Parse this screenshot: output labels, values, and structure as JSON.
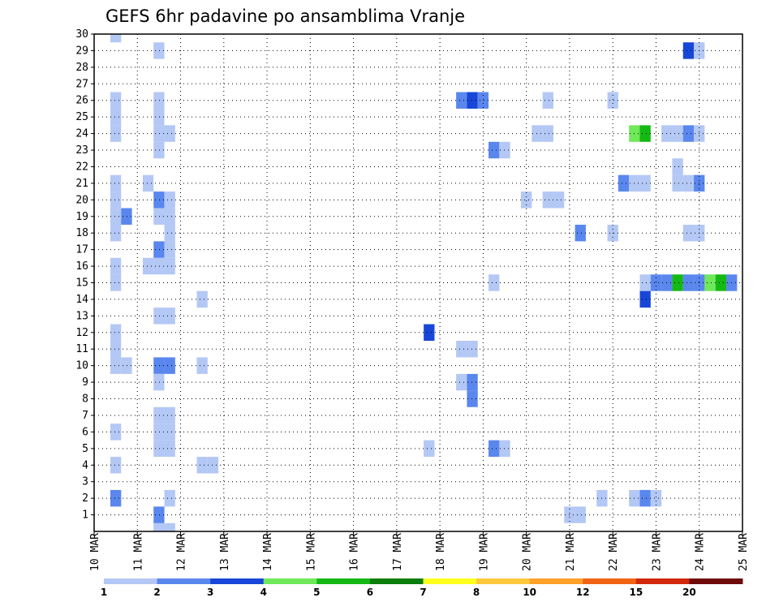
{
  "chart_data": {
    "type": "heatmap",
    "title": "GEFS 6hr padavine po ansamblima Vranje",
    "xlabel": "",
    "ylabel": "",
    "x_ticks": [
      "10 MAR",
      "11 MAR",
      "12 MAR",
      "13 MAR",
      "14 MAR",
      "15 MAR",
      "16 MAR",
      "17 MAR",
      "18 MAR",
      "19 MAR",
      "20 MAR",
      "21 MAR",
      "22 MAR",
      "23 MAR",
      "24 MAR",
      "25 MAR"
    ],
    "y_ticks": [
      1,
      2,
      3,
      4,
      5,
      6,
      7,
      8,
      9,
      10,
      11,
      12,
      13,
      14,
      15,
      16,
      17,
      18,
      19,
      20,
      21,
      22,
      23,
      24,
      25,
      26,
      27,
      28,
      29,
      30
    ],
    "y_range": [
      0,
      30
    ],
    "time_steps_per_day": 4,
    "grid": "dotted",
    "legend": {
      "placement": "bottom",
      "bins": [
        {
          "from": 1,
          "to": 2,
          "color": "#b4c8f5"
        },
        {
          "from": 2,
          "to": 3,
          "color": "#5a87ee"
        },
        {
          "from": 3,
          "to": 4,
          "color": "#1846d8"
        },
        {
          "from": 4,
          "to": 5,
          "color": "#6fe85a"
        },
        {
          "from": 5,
          "to": 6,
          "color": "#14b914"
        },
        {
          "from": 6,
          "to": 7,
          "color": "#0a7d0a"
        },
        {
          "from": 7,
          "to": 8,
          "color": "#ffff1e"
        },
        {
          "from": 8,
          "to": 10,
          "color": "#ffc83c"
        },
        {
          "from": 10,
          "to": 12,
          "color": "#ffa028"
        },
        {
          "from": 12,
          "to": 15,
          "color": "#f06414"
        },
        {
          "from": 15,
          "to": 20,
          "color": "#d2280a"
        },
        {
          "from": 20,
          "to": null,
          "color": "#6e0a0a"
        }
      ],
      "labels": [
        "1",
        "2",
        "3",
        "4",
        "5",
        "6",
        "7",
        "8",
        "10",
        "12",
        "15",
        "20"
      ]
    },
    "cells": [
      [
        0.5,
        30,
        1
      ],
      [
        0.5,
        26,
        1
      ],
      [
        0.5,
        25,
        1
      ],
      [
        0.5,
        24,
        1
      ],
      [
        0.5,
        21,
        1
      ],
      [
        0.5,
        20,
        1
      ],
      [
        0.5,
        19,
        1
      ],
      [
        0.5,
        18,
        1
      ],
      [
        0.5,
        16,
        1
      ],
      [
        0.5,
        15,
        1
      ],
      [
        0.5,
        12,
        1
      ],
      [
        0.5,
        11,
        1
      ],
      [
        0.5,
        10,
        1
      ],
      [
        0.5,
        6,
        1
      ],
      [
        0.5,
        4,
        1
      ],
      [
        0.5,
        2,
        2
      ],
      [
        0.75,
        19,
        2
      ],
      [
        0.75,
        10,
        1
      ],
      [
        1.25,
        21,
        1
      ],
      [
        1.25,
        16,
        1
      ],
      [
        1.5,
        29,
        1
      ],
      [
        1.5,
        26,
        1
      ],
      [
        1.5,
        25,
        1
      ],
      [
        1.5,
        24,
        1
      ],
      [
        1.5,
        23,
        1
      ],
      [
        1.5,
        20,
        2
      ],
      [
        1.5,
        19,
        1
      ],
      [
        1.5,
        17,
        2
      ],
      [
        1.5,
        16,
        1
      ],
      [
        1.5,
        13,
        1
      ],
      [
        1.5,
        10,
        2
      ],
      [
        1.5,
        9,
        1
      ],
      [
        1.5,
        7,
        1
      ],
      [
        1.5,
        6,
        1
      ],
      [
        1.5,
        5,
        1
      ],
      [
        1.5,
        0,
        1
      ],
      [
        1.5,
        1,
        2
      ],
      [
        1.75,
        24,
        1
      ],
      [
        1.75,
        20,
        1
      ],
      [
        1.75,
        19,
        1
      ],
      [
        1.75,
        18,
        1
      ],
      [
        1.75,
        17,
        1
      ],
      [
        1.75,
        16,
        1
      ],
      [
        1.75,
        13,
        1
      ],
      [
        1.75,
        10,
        2
      ],
      [
        1.75,
        7,
        1
      ],
      [
        1.75,
        6,
        1
      ],
      [
        1.75,
        5,
        1
      ],
      [
        1.75,
        2,
        1
      ],
      [
        1.75,
        0,
        1
      ],
      [
        2.5,
        14,
        1
      ],
      [
        2.5,
        10,
        1
      ],
      [
        2.5,
        4,
        1
      ],
      [
        2.75,
        4,
        1
      ],
      [
        7.75,
        12,
        3
      ],
      [
        7.75,
        5,
        1
      ],
      [
        8.5,
        26,
        2
      ],
      [
        8.5,
        11,
        1
      ],
      [
        8.5,
        9,
        1
      ],
      [
        8.75,
        26,
        3
      ],
      [
        8.75,
        11,
        1
      ],
      [
        8.75,
        9,
        2
      ],
      [
        8.75,
        8,
        2
      ],
      [
        9.0,
        26,
        2
      ],
      [
        9.25,
        23,
        2
      ],
      [
        9.25,
        15,
        1
      ],
      [
        9.25,
        5,
        2
      ],
      [
        9.5,
        23,
        1
      ],
      [
        9.5,
        5,
        1
      ],
      [
        10.0,
        20,
        1
      ],
      [
        10.25,
        24,
        1
      ],
      [
        10.5,
        24,
        1
      ],
      [
        10.5,
        26,
        1
      ],
      [
        10.5,
        20,
        1
      ],
      [
        10.75,
        20,
        1
      ],
      [
        11.0,
        1,
        1
      ],
      [
        11.25,
        18,
        2
      ],
      [
        11.25,
        1,
        1
      ],
      [
        11.75,
        2,
        1
      ],
      [
        12.0,
        26,
        1
      ],
      [
        12.0,
        18,
        1
      ],
      [
        12.25,
        21,
        2
      ],
      [
        12.5,
        21,
        1
      ],
      [
        12.75,
        21,
        1
      ],
      [
        12.5,
        2,
        1
      ],
      [
        12.5,
        24,
        4
      ],
      [
        12.75,
        24,
        5
      ],
      [
        12.75,
        2,
        2
      ],
      [
        12.75,
        15,
        1
      ],
      [
        12.75,
        14,
        3
      ],
      [
        13.0,
        2,
        1
      ],
      [
        13.0,
        15,
        2
      ],
      [
        13.25,
        15,
        2
      ],
      [
        13.25,
        24,
        1
      ],
      [
        13.5,
        24,
        1
      ],
      [
        13.5,
        22,
        1
      ],
      [
        13.5,
        15,
        5
      ],
      [
        13.5,
        21,
        1
      ],
      [
        13.75,
        24,
        2
      ],
      [
        13.75,
        21,
        1
      ],
      [
        13.75,
        18,
        1
      ],
      [
        13.75,
        15,
        2
      ],
      [
        13.75,
        29,
        3
      ],
      [
        14.0,
        29,
        1
      ],
      [
        14.0,
        24,
        1
      ],
      [
        14.0,
        21,
        2
      ],
      [
        14.0,
        18,
        1
      ],
      [
        14.0,
        15,
        2
      ],
      [
        14.25,
        15,
        4
      ],
      [
        14.5,
        15,
        5
      ],
      [
        14.75,
        15,
        2
      ]
    ]
  }
}
